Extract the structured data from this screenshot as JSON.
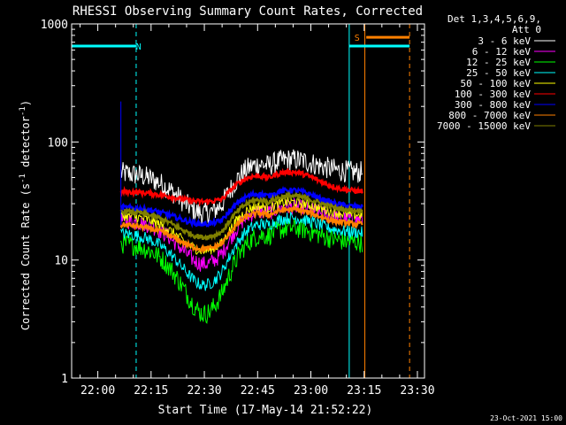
{
  "chart_data": {
    "type": "line",
    "title": "RHESSI Observing Summary Count Rates, Corrected",
    "xlabel": "Start Time (17-May-14 21:52:22)",
    "ylabel": "Corrected Count Rate (s",
    "ylabel_sup1": "-1",
    "ylabel_mid": " detector",
    "ylabel_sup2": "-1",
    "ylabel_end": ")",
    "y_scale": "log",
    "ylim": [
      1,
      1000
    ],
    "xlim_minutes": [
      -7.37,
      92.0
    ],
    "x_origin": "21:52:22",
    "x_ticks": [
      {
        "label": "22:00",
        "t": 0
      },
      {
        "label": "22:15",
        "t": 15
      },
      {
        "label": "22:30",
        "t": 30
      },
      {
        "label": "22:45",
        "t": 45
      },
      {
        "label": "23:00",
        "t": 60
      },
      {
        "label": "23:15",
        "t": 75
      },
      {
        "label": "23:30",
        "t": 90
      }
    ],
    "y_ticks": [
      {
        "label": "1",
        "v": 1
      },
      {
        "label": "10",
        "v": 10
      },
      {
        "label": "100",
        "v": 100
      },
      {
        "label": "1000",
        "v": 1000
      }
    ],
    "legend_header": [
      "Det 1,3,4,5,6,9,",
      "Att 0"
    ],
    "legend_position": "right",
    "series": [
      {
        "name": "3 - 6 keV",
        "color": "#ffffff",
        "base": 55,
        "dip": 0.45,
        "hump": 0.95,
        "noise": 0.22
      },
      {
        "name": "6 - 12 keV",
        "color": "#ff00ff",
        "base": 22,
        "dip": 0.42,
        "hump": 0.95,
        "noise": 0.16
      },
      {
        "name": "12 - 25 keV",
        "color": "#00ff00",
        "base": 14,
        "dip": 0.25,
        "hump": 1.0,
        "noise": 0.2
      },
      {
        "name": "25 - 50 keV",
        "color": "#00ffff",
        "base": 17,
        "dip": 0.36,
        "hump": 1.0,
        "noise": 0.12
      },
      {
        "name": "50 - 100 keV",
        "color": "#ffff00",
        "base": 24,
        "dip": 0.5,
        "hump": 0.95,
        "noise": 0.1
      },
      {
        "name": "100 - 300 keV",
        "color": "#ff0000",
        "base": 38,
        "dip": 0.82,
        "hump": 1.12,
        "noise": 0.05
      },
      {
        "name": "300 - 800 keV",
        "color": "#0000ff",
        "base": 28,
        "dip": 0.72,
        "hump": 1.05,
        "noise": 0.05
      },
      {
        "name": "800 - 7000 keV",
        "color": "#ff8000",
        "base": 20,
        "dip": 0.62,
        "hump": 1.0,
        "noise": 0.05
      },
      {
        "name": "7000 - 15000 keV",
        "color": "#808000",
        "base": 26,
        "dip": 0.6,
        "hump": 1.0,
        "noise": 0.05
      }
    ],
    "annotations": [
      {
        "text": "N",
        "color": "#00ffff",
        "t": 11.5,
        "value": 650
      },
      {
        "text": "S",
        "color": "#ff8000",
        "t": 73,
        "value": 770
      }
    ],
    "flag_bars": [
      {
        "name": "night",
        "color": "#00ffff",
        "t0": -7.37,
        "t1": 10.8,
        "value": 650
      },
      {
        "name": "night",
        "color": "#00ffff",
        "t0": 70.8,
        "t1": 87.8,
        "value": 650
      },
      {
        "name": "saa",
        "color": "#ff8000",
        "t0": 75.6,
        "t1": 87.8,
        "value": 770
      }
    ],
    "vlines": [
      {
        "color": "#00ffff",
        "t": -7.37,
        "style": "solid"
      },
      {
        "color": "#00ffff",
        "t": 10.8,
        "style": "dashed"
      },
      {
        "color": "#00ffff",
        "t": 70.8,
        "style": "solid"
      },
      {
        "color": "#ff8000",
        "t": 75.2,
        "style": "solid"
      },
      {
        "color": "#ff8000",
        "t": 87.8,
        "style": "dashed"
      }
    ],
    "data_start_t": 6.5,
    "data_end_t": 74.5
  },
  "footer_date": "23-Oct-2021 15:00"
}
